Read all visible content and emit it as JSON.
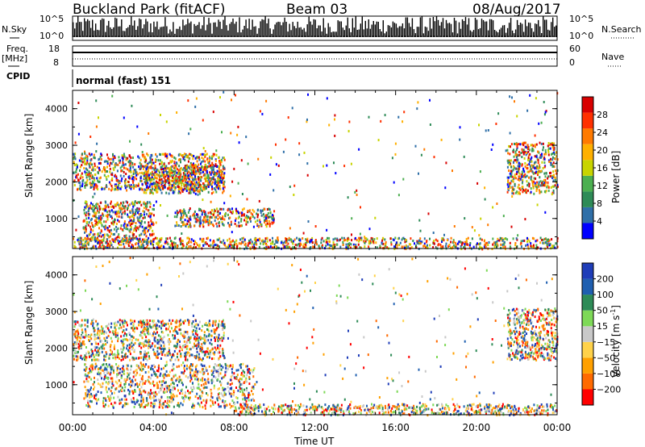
{
  "header": {
    "station": "Buckland Park (fitACF)",
    "beam": "Beam 03",
    "date": "08/Aug/2017"
  },
  "noise_panel": {
    "left_label": "N.Sky",
    "right_label": "N.Search",
    "ticks_left": [
      "10^5",
      "10^0"
    ],
    "ticks_right": [
      "10^5",
      "10^0"
    ]
  },
  "freq_panel": {
    "left_label_1": "Freq.",
    "left_label_2": "[MHz]",
    "right_label": "Nave",
    "ticks_left": [
      "18",
      "8"
    ],
    "ticks_right": [
      "60",
      "0"
    ]
  },
  "cpid": {
    "label": "CPID",
    "mode": "normal (fast) 151"
  },
  "colors": {
    "power_scale": [
      "#0000ff",
      "#2f6fa8",
      "#2e8b57",
      "#4caf50",
      "#c8d400",
      "#ffb000",
      "#ff7a00",
      "#ff3000",
      "#d80000"
    ],
    "velocity_scale": [
      "#ff0000",
      "#ff6a00",
      "#ffa000",
      "#ffd24a",
      "#c8c8c8",
      "#7ed957",
      "#2e8b57",
      "#1f5fb0",
      "#1f3db8"
    ]
  },
  "chart_data": [
    {
      "type": "heatmap",
      "title": "",
      "xlabel": "",
      "ylabel": "Slant Range [km]",
      "xlim": [
        "00:00",
        "24:00"
      ],
      "ylim": [
        180,
        4500
      ],
      "x_ticks": [
        "00:00",
        "04:00",
        "08:00",
        "12:00",
        "16:00",
        "20:00",
        "00:00"
      ],
      "y_ticks": [
        "4000",
        "3000",
        "2000",
        "1000"
      ],
      "colorbar": {
        "label": "Power [dB]",
        "ticks": [
          "28",
          "24",
          "20",
          "16",
          "12",
          "8",
          "4"
        ],
        "range": [
          0,
          30
        ]
      },
      "regions": [
        {
          "hours": [
            0,
            7.5
          ],
          "range_km": [
            1800,
            2800
          ],
          "level": "green-orange"
        },
        {
          "hours": [
            0.5,
            4
          ],
          "range_km": [
            400,
            1500
          ],
          "level": "green-blue"
        },
        {
          "hours": [
            3.5,
            7.5
          ],
          "range_km": [
            1700,
            2500
          ],
          "level": "orange"
        },
        {
          "hours": [
            5,
            10
          ],
          "range_km": [
            800,
            1300
          ],
          "level": "blue"
        },
        {
          "hours": [
            0,
            24
          ],
          "range_km": [
            200,
            500
          ],
          "level": "orange-red near-range echoes"
        },
        {
          "hours": [
            21.5,
            24
          ],
          "range_km": [
            1700,
            3100
          ],
          "level": "orange-green"
        }
      ]
    },
    {
      "type": "heatmap",
      "title": "",
      "xlabel": "Time UT",
      "ylabel": "Slant Range [km]",
      "xlim": [
        "00:00",
        "24:00"
      ],
      "ylim": [
        180,
        4500
      ],
      "x_ticks": [
        "00:00",
        "04:00",
        "08:00",
        "12:00",
        "16:00",
        "20:00",
        "00:00"
      ],
      "y_ticks": [
        "4000",
        "3000",
        "2000",
        "1000"
      ],
      "colorbar": {
        "label_main": "Velocity [m s",
        "label_sup": "-1",
        "label_end": "]",
        "ticks": [
          "200",
          "100",
          "50",
          "15",
          "−15",
          "−50",
          "−100",
          "−200"
        ],
        "range": [
          -250,
          250
        ]
      },
      "regions": [
        {
          "hours": [
            0,
            7.5
          ],
          "range_km": [
            1700,
            2800
          ],
          "level": "grey mixed"
        },
        {
          "hours": [
            0.5,
            9
          ],
          "range_km": [
            400,
            1600
          ],
          "level": "grey mixed"
        },
        {
          "hours": [
            8,
            24
          ],
          "range_km": [
            200,
            500
          ],
          "level": "green-orange"
        },
        {
          "hours": [
            21.5,
            24
          ],
          "range_km": [
            1700,
            3100
          ],
          "level": "grey mixed"
        }
      ]
    }
  ]
}
